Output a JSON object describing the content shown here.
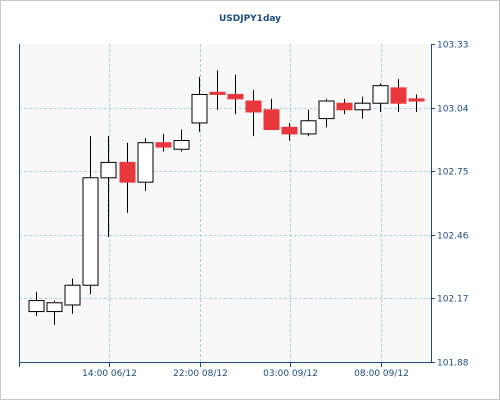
{
  "chart_data": {
    "type": "candlestick",
    "title": "USDJPY1day",
    "y_ticks": [
      "103.33",
      "103.04",
      "102.75",
      "102.46",
      "102.17",
      "101.88"
    ],
    "ylim": [
      101.88,
      103.33
    ],
    "x_ticks": [
      "14:00 06/12",
      "22:00 08/12",
      "03:00 09/12",
      "08:00 09/12"
    ],
    "grid": true,
    "up_color": "#ffffff",
    "down_color": "#e8383d",
    "candles": [
      {
        "open": 102.11,
        "high": 102.2,
        "low": 102.09,
        "close": 102.16
      },
      {
        "open": 102.11,
        "high": 102.16,
        "low": 102.05,
        "close": 102.15
      },
      {
        "open": 102.14,
        "high": 102.26,
        "low": 102.1,
        "close": 102.23
      },
      {
        "open": 102.23,
        "high": 102.91,
        "low": 102.19,
        "close": 102.72
      },
      {
        "open": 102.72,
        "high": 102.91,
        "low": 102.45,
        "close": 102.79
      },
      {
        "open": 102.79,
        "high": 102.88,
        "low": 102.56,
        "close": 102.7
      },
      {
        "open": 102.7,
        "high": 102.9,
        "low": 102.66,
        "close": 102.88
      },
      {
        "open": 102.88,
        "high": 102.92,
        "low": 102.84,
        "close": 102.86
      },
      {
        "open": 102.85,
        "high": 102.94,
        "low": 102.84,
        "close": 102.89
      },
      {
        "open": 102.97,
        "high": 103.18,
        "low": 102.93,
        "close": 103.1
      },
      {
        "open": 103.11,
        "high": 103.21,
        "low": 103.03,
        "close": 103.1
      },
      {
        "open": 103.1,
        "high": 103.19,
        "low": 103.01,
        "close": 103.08
      },
      {
        "open": 103.07,
        "high": 103.12,
        "low": 102.91,
        "close": 103.02
      },
      {
        "open": 103.03,
        "high": 103.08,
        "low": 102.94,
        "close": 102.94
      },
      {
        "open": 102.95,
        "high": 102.97,
        "low": 102.89,
        "close": 102.92
      },
      {
        "open": 102.92,
        "high": 103.03,
        "low": 102.91,
        "close": 102.98
      },
      {
        "open": 102.99,
        "high": 103.08,
        "low": 102.95,
        "close": 103.07
      },
      {
        "open": 103.06,
        "high": 103.08,
        "low": 103.01,
        "close": 103.03
      },
      {
        "open": 103.03,
        "high": 103.09,
        "low": 102.99,
        "close": 103.06
      },
      {
        "open": 103.06,
        "high": 103.15,
        "low": 103.02,
        "close": 103.14
      },
      {
        "open": 103.13,
        "high": 103.17,
        "low": 103.02,
        "close": 103.06
      },
      {
        "open": 103.08,
        "high": 103.1,
        "low": 103.02,
        "close": 103.07
      }
    ]
  }
}
